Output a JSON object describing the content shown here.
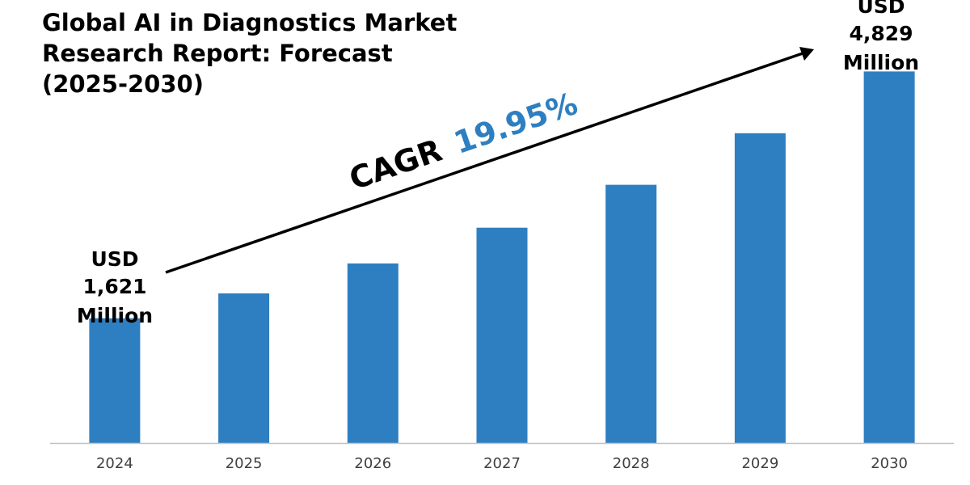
{
  "chart_data": {
    "type": "bar",
    "title_lines": [
      "Global AI in Diagnostics Market",
      "Research Report: Forecast",
      "(2025-2030)"
    ],
    "categories": [
      "2024",
      "2025",
      "2026",
      "2027",
      "2028",
      "2029",
      "2030"
    ],
    "values": [
      1621,
      1945,
      2333,
      2798,
      3356,
      4026,
      4829
    ],
    "unit": "USD Million",
    "ylim": [
      0,
      5400
    ],
    "grid": false,
    "bar_color": "#2e7fc1",
    "axis_color": "#bfbfbf",
    "annotations": {
      "start": {
        "line1": "USD",
        "line2": "1,621",
        "line3": "Million"
      },
      "end": {
        "line1": "USD",
        "line2": "4,829",
        "line3": "Million"
      },
      "cagr": {
        "label": "CAGR",
        "value": "19.95%",
        "value_color": "#2e7fc1"
      }
    }
  }
}
